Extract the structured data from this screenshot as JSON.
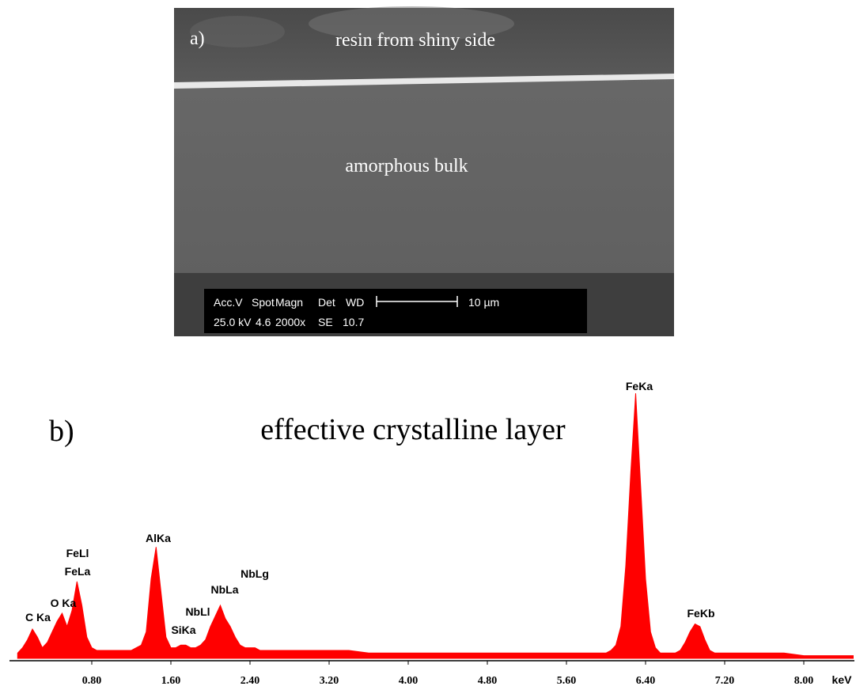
{
  "panel_a": {
    "label": "a)",
    "top_text": "resin from shiny side",
    "middle_text": "amorphous bulk",
    "databar": {
      "headers": [
        "Acc.V",
        "Spot",
        "Magn",
        "Det",
        "WD"
      ],
      "values": [
        "25.0 kV",
        "4.6",
        "2000x",
        "SE",
        "10.7"
      ],
      "scale": "10 µm"
    }
  },
  "chart_data": {
    "type": "area",
    "label": "b)",
    "title": "effective crystalline layer",
    "x_label": "keV",
    "color": "#ff0000",
    "peak_labels": [
      "C Ka",
      "O Ka",
      "FeLl",
      "FeLa",
      "AlKa",
      "SiKa",
      "NbLl",
      "NbLa",
      "NbLg",
      "FeKa",
      "FeKb"
    ],
    "xlim": [
      0,
      8.5
    ],
    "ylim": [
      0,
      100
    ],
    "xticks": [
      {
        "value": 0.8,
        "label": "0.80"
      },
      {
        "value": 1.6,
        "label": "1.60"
      },
      {
        "value": 2.4,
        "label": "2.40"
      },
      {
        "value": 3.2,
        "label": "3.20"
      },
      {
        "value": 4.0,
        "label": "4.00"
      },
      {
        "value": 4.8,
        "label": "4.80"
      },
      {
        "value": 5.6,
        "label": "5.60"
      },
      {
        "value": 6.4,
        "label": "6.40"
      },
      {
        "value": 7.2,
        "label": "7.20"
      },
      {
        "value": 8.0,
        "label": "8.00"
      }
    ],
    "x": [
      0.05,
      0.1,
      0.15,
      0.2,
      0.25,
      0.3,
      0.35,
      0.4,
      0.45,
      0.5,
      0.55,
      0.6,
      0.65,
      0.7,
      0.75,
      0.8,
      0.85,
      0.9,
      0.95,
      1.0,
      1.05,
      1.1,
      1.15,
      1.2,
      1.25,
      1.3,
      1.35,
      1.4,
      1.45,
      1.5,
      1.55,
      1.6,
      1.65,
      1.7,
      1.75,
      1.8,
      1.85,
      1.9,
      1.95,
      2.0,
      2.05,
      2.1,
      2.15,
      2.2,
      2.25,
      2.3,
      2.35,
      2.4,
      2.45,
      2.5,
      2.6,
      2.8,
      3.0,
      3.2,
      3.4,
      3.6,
      3.8,
      4.0,
      4.2,
      4.4,
      4.6,
      4.8,
      5.0,
      5.2,
      5.4,
      5.6,
      5.8,
      6.0,
      6.05,
      6.1,
      6.15,
      6.2,
      6.25,
      6.3,
      6.35,
      6.4,
      6.45,
      6.5,
      6.55,
      6.6,
      6.65,
      6.7,
      6.75,
      6.8,
      6.85,
      6.9,
      6.95,
      7.0,
      7.05,
      7.1,
      7.2,
      7.4,
      7.6,
      7.8,
      8.0,
      8.2,
      8.4,
      8.5
    ],
    "values": [
      2,
      4,
      7,
      11,
      8,
      4,
      6,
      10,
      14,
      17,
      12,
      18,
      29,
      20,
      8,
      4,
      3,
      3,
      3,
      3,
      3,
      3,
      3,
      3,
      4,
      5,
      10,
      30,
      42,
      25,
      8,
      4,
      4,
      5,
      5,
      4,
      4,
      5,
      7,
      12,
      16,
      20,
      15,
      12,
      8,
      5,
      4,
      4,
      4,
      3,
      3,
      3,
      3,
      3,
      3,
      2,
      2,
      2,
      2,
      2,
      2,
      2,
      2,
      2,
      2,
      2,
      2,
      2,
      3,
      5,
      12,
      35,
      70,
      100,
      65,
      30,
      10,
      4,
      2,
      2,
      2,
      2,
      3,
      6,
      10,
      13,
      12,
      7,
      3,
      2,
      2,
      2,
      2,
      2,
      1,
      1,
      1,
      1
    ]
  }
}
